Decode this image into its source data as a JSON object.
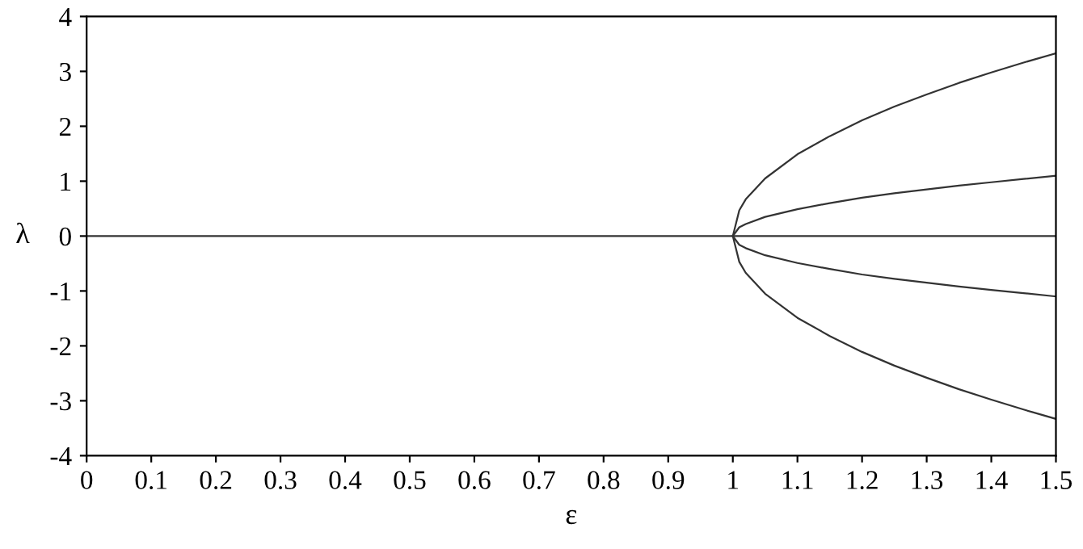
{
  "chart_data": {
    "type": "line",
    "xlabel": "ε",
    "ylabel": "λ",
    "xlim": [
      0,
      1.5
    ],
    "xticks": [
      0,
      0.1,
      0.2,
      0.3,
      0.4,
      0.5,
      0.6,
      0.7,
      0.8,
      0.9,
      1,
      1.1,
      1.2,
      1.3,
      1.4,
      1.5
    ],
    "ylim": [
      -4,
      4
    ],
    "yticks": [
      -4,
      -3,
      -2,
      -1,
      0,
      1,
      2,
      3,
      4
    ],
    "grid": false,
    "legend": false,
    "marker": "none",
    "line_style": "solid",
    "series": [
      {
        "color": "#333333",
        "x": [
          0,
          1.5
        ],
        "values": [
          0,
          0
        ]
      },
      {
        "color": "#333333",
        "x": [
          1,
          1.01,
          1.02,
          1.05,
          1.1,
          1.15,
          1.2,
          1.25,
          1.3,
          1.35,
          1.4,
          1.45,
          1.5
        ],
        "values": [
          0,
          0.47,
          0.67,
          1.05,
          1.49,
          1.82,
          2.11,
          2.36,
          2.58,
          2.79,
          2.98,
          3.16,
          3.33
        ]
      },
      {
        "color": "#333333",
        "x": [
          1,
          1.01,
          1.02,
          1.05,
          1.1,
          1.15,
          1.2,
          1.25,
          1.3,
          1.35,
          1.4,
          1.45,
          1.5
        ],
        "values": [
          0,
          0.16,
          0.22,
          0.35,
          0.49,
          0.6,
          0.7,
          0.78,
          0.85,
          0.92,
          0.98,
          1.04,
          1.1
        ]
      },
      {
        "color": "#333333",
        "x": [
          1,
          1.01,
          1.02,
          1.05,
          1.1,
          1.15,
          1.2,
          1.25,
          1.3,
          1.35,
          1.4,
          1.45,
          1.5
        ],
        "values": [
          0,
          -0.16,
          -0.22,
          -0.35,
          -0.49,
          -0.6,
          -0.7,
          -0.78,
          -0.85,
          -0.92,
          -0.98,
          -1.04,
          -1.1
        ]
      },
      {
        "color": "#333333",
        "x": [
          1,
          1.01,
          1.02,
          1.05,
          1.1,
          1.15,
          1.2,
          1.25,
          1.3,
          1.35,
          1.4,
          1.45,
          1.5
        ],
        "values": [
          0,
          -0.47,
          -0.67,
          -1.05,
          -1.49,
          -1.82,
          -2.11,
          -2.36,
          -2.58,
          -2.79,
          -2.98,
          -3.16,
          -3.33
        ]
      }
    ]
  }
}
